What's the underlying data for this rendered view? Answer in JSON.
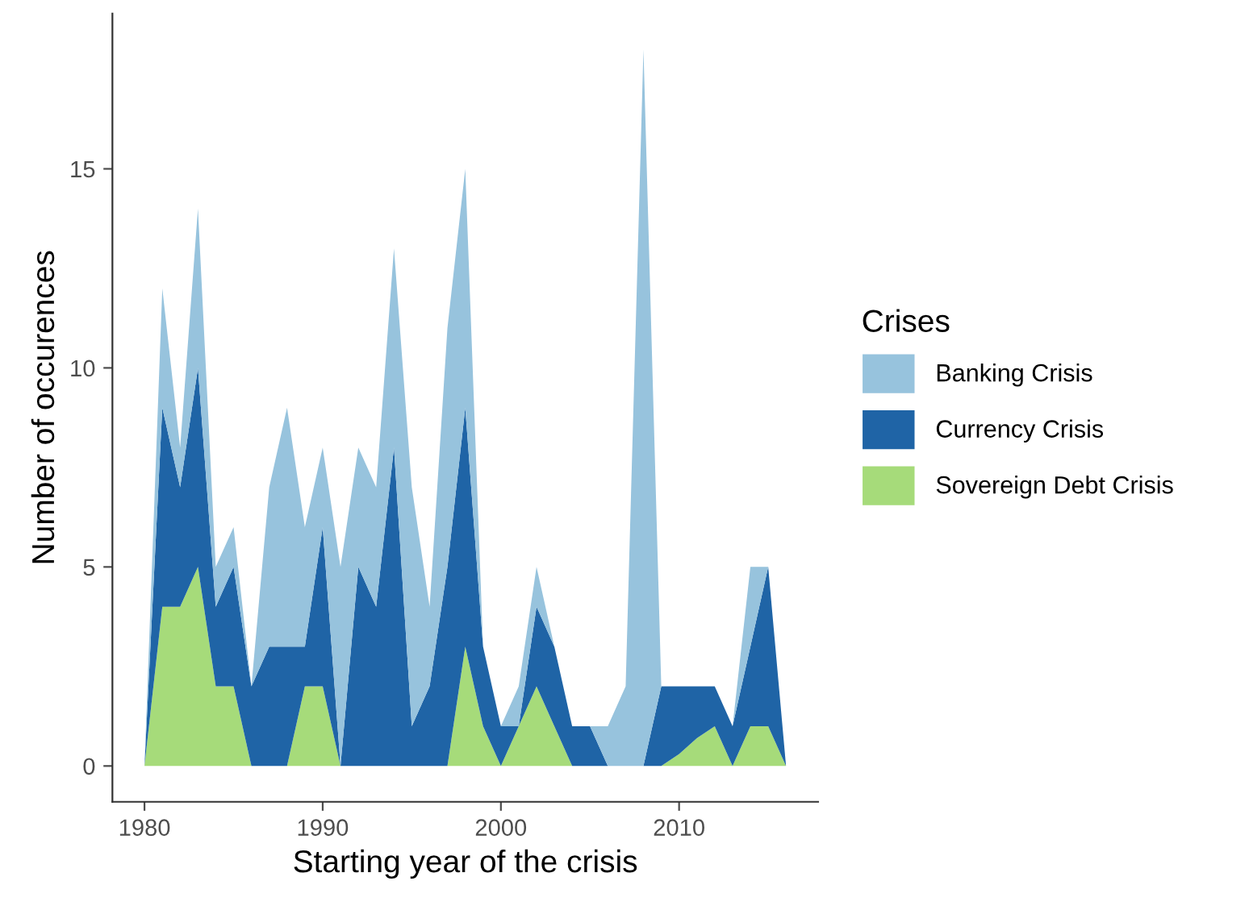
{
  "chart_data": {
    "type": "area",
    "stacked": true,
    "xlabel": "Starting year of the crisis",
    "ylabel": "Number of occurences",
    "legend_title": "Crises",
    "x": [
      1980,
      1981,
      1982,
      1983,
      1984,
      1985,
      1986,
      1987,
      1988,
      1989,
      1990,
      1991,
      1992,
      1993,
      1994,
      1995,
      1996,
      1997,
      1998,
      1999,
      2000,
      2001,
      2002,
      2003,
      2004,
      2005,
      2006,
      2007,
      2008,
      2009,
      2010,
      2011,
      2012,
      2013,
      2014,
      2015,
      2016
    ],
    "series": [
      {
        "name": "Sovereign Debt Crisis",
        "color": "#a6db7a",
        "values": [
          0,
          4,
          4,
          5,
          2,
          2,
          0,
          0,
          0,
          2,
          2,
          0,
          0,
          0,
          0,
          0,
          0,
          0,
          3,
          1,
          0,
          1,
          2,
          1,
          0,
          0,
          0,
          0,
          0,
          0,
          0.3,
          0.7,
          1,
          0,
          1,
          1,
          0
        ]
      },
      {
        "name": "Currency Crisis",
        "color": "#1f64a6",
        "values": [
          0,
          5,
          3,
          5,
          2,
          3,
          2,
          3,
          3,
          1,
          4,
          0,
          5,
          4,
          8,
          1,
          2,
          5,
          6,
          2,
          1,
          0,
          2,
          2,
          1,
          1,
          0,
          0,
          0,
          2,
          1.7,
          1.3,
          1,
          1,
          2,
          4,
          0
        ]
      },
      {
        "name": "Banking Crisis",
        "color": "#97c3dd",
        "values": [
          0,
          3,
          1,
          4,
          1,
          1,
          0,
          4,
          6,
          3,
          2,
          5,
          3,
          3,
          5,
          6,
          2,
          6,
          6,
          0,
          0,
          1,
          1,
          0,
          0,
          0,
          1,
          2,
          18,
          0,
          0,
          0,
          0,
          0,
          2,
          0,
          0
        ]
      }
    ],
    "xlim": [
      1978.2,
      2017.8
    ],
    "xticks": [
      1980,
      1990,
      2000,
      2010
    ],
    "ylim": [
      -0.9,
      18.9
    ],
    "yticks": [
      0,
      5,
      10,
      15
    ],
    "legend": "right",
    "grid": false
  }
}
